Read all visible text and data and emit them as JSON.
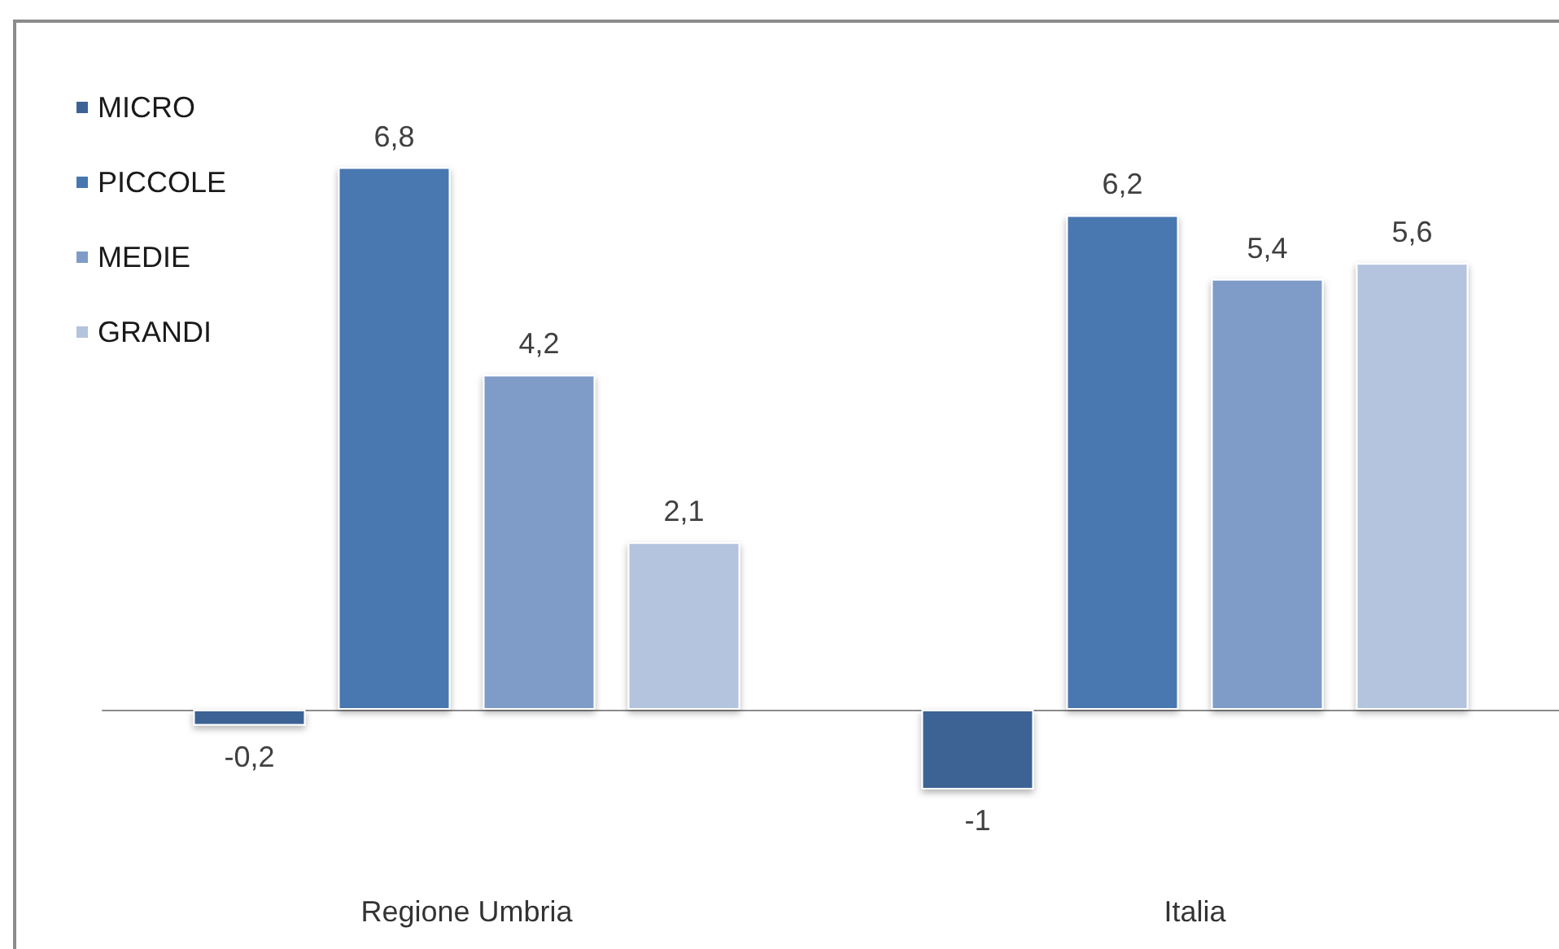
{
  "chart_data": {
    "type": "bar",
    "categories": [
      "Regione Umbria",
      "Italia"
    ],
    "series": [
      {
        "name": "MICRO",
        "color": "#3c6395",
        "values": [
          -0.2,
          -1
        ],
        "value_labels": [
          "-0,2",
          "-1"
        ]
      },
      {
        "name": "PICCOLE",
        "color": "#4877b0",
        "values": [
          6.8,
          6.2
        ],
        "value_labels": [
          "6,8",
          "6,2"
        ]
      },
      {
        "name": "MEDIE",
        "color": "#7f9cc8",
        "values": [
          4.2,
          5.4
        ],
        "value_labels": [
          "4,2",
          "5,4"
        ]
      },
      {
        "name": "GRANDI",
        "color": "#b4c3de",
        "values": [
          2.1,
          5.6
        ],
        "value_labels": [
          "2,1",
          "5,6"
        ]
      }
    ],
    "legend": "top left"
  }
}
